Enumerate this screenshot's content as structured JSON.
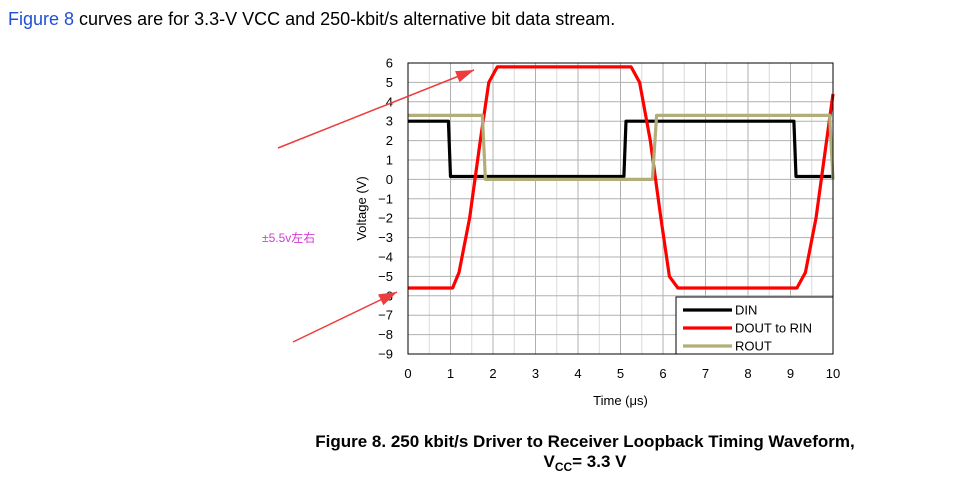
{
  "intro": {
    "link": "Figure 8",
    "text": " curves are for 3.3-V VCC and 250-kbit/s alternative bit data stream."
  },
  "annotation": {
    "note": "±5.5v左右",
    "arrow_color": "#ee3b3b",
    "note_color": "#d63bd6"
  },
  "caption": {
    "line1": "Figure 8.  250 kbit/s Driver to Receiver Loopback Timing Waveform,",
    "v": "V",
    "sub": "CC",
    "rest": "= 3.3 V"
  },
  "chart_data": {
    "type": "line",
    "title": "",
    "xlabel": "Time (μs)",
    "ylabel": "Voltage (V)",
    "xlim": [
      0,
      10
    ],
    "ylim": [
      -9,
      6
    ],
    "xticks": [
      "0",
      "1",
      "2",
      "3",
      "4",
      "5",
      "6",
      "7",
      "8",
      "9",
      "10"
    ],
    "yticks": [
      "6",
      "5",
      "4",
      "3",
      "2",
      "1",
      "0",
      "−1",
      "−2",
      "−3",
      "−4",
      "−5",
      "−6",
      "−7",
      "−8",
      "−9"
    ],
    "grid": true,
    "legend_position": "bottom-right",
    "series": [
      {
        "name": "DIN",
        "color": "#000000",
        "x": [
          0,
          0.95,
          1.0,
          5.08,
          5.13,
          9.08,
          9.13,
          10
        ],
        "y": [
          3.0,
          3.0,
          0.15,
          0.15,
          3.0,
          3.0,
          0.15,
          0.15
        ]
      },
      {
        "name": "DOUT to RIN",
        "color": "#ff0000",
        "x": [
          0,
          1.05,
          1.2,
          1.45,
          1.7,
          1.9,
          2.1,
          5.25,
          5.45,
          5.7,
          5.95,
          6.15,
          6.35,
          9.15,
          9.35,
          9.6,
          9.85,
          10
        ],
        "y": [
          -5.6,
          -5.6,
          -4.8,
          -2.0,
          2.0,
          5.0,
          5.8,
          5.8,
          5.0,
          2.0,
          -2.0,
          -5.0,
          -5.6,
          -5.6,
          -4.8,
          -2.0,
          2.0,
          4.4
        ]
      },
      {
        "name": "ROUT",
        "color": "#b2ae7a",
        "x": [
          0,
          1.75,
          1.82,
          5.75,
          5.85,
          9.92,
          10
        ],
        "y": [
          3.3,
          3.3,
          0.0,
          0.0,
          3.3,
          3.3,
          0.0
        ]
      }
    ]
  }
}
